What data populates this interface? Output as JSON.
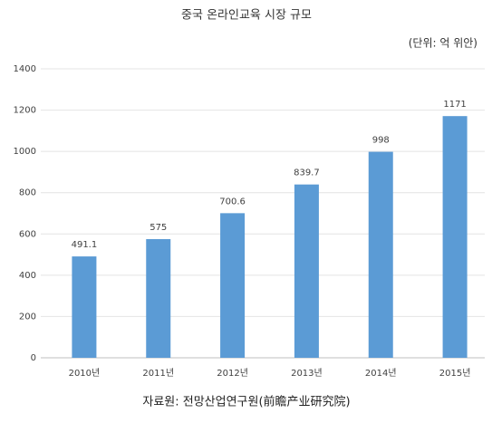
{
  "chart_data": {
    "type": "bar",
    "title": "중국 온라인교육 시장 규모",
    "unit": "(단위: 억 위안)",
    "source": "자료원: 전망산업연구원(前瞻产业研究院)",
    "categories": [
      "2010년",
      "2011년",
      "2012년",
      "2013년",
      "2014년",
      "2015년"
    ],
    "values": [
      491.1,
      575,
      700.6,
      839.7,
      998,
      1171
    ],
    "color": "#5b9bd5",
    "ylim": [
      0,
      1400
    ],
    "yticks": [
      0,
      200,
      400,
      600,
      800,
      1000,
      1200,
      1400
    ],
    "grid": true
  }
}
